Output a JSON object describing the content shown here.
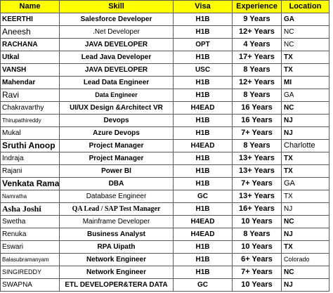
{
  "colors": {
    "header_bg": "#FFFF00",
    "border": "#5a5a5a"
  },
  "headers": {
    "name": "Name",
    "skill": "Skill",
    "visa": "Visa",
    "experience": "Experience",
    "location": "Location"
  },
  "rows": [
    {
      "name": "KEERTHI",
      "skill": "Salesforce Developer",
      "visa": "H1B",
      "experience": "9 Years",
      "location": "GA"
    },
    {
      "name": "Aneesh",
      "skill": ".Net Developer",
      "visa": "H1B",
      "experience": "12+ Years",
      "location": "NC"
    },
    {
      "name": "RACHANA",
      "skill": "JAVA DEVELOPER",
      "visa": "OPT",
      "experience": "4 Years",
      "location": "NC"
    },
    {
      "name": "Utkal",
      "skill": "Lead Java Developer",
      "visa": "H1B",
      "experience": "17+ Years",
      "location": "TX"
    },
    {
      "name": "VANSH",
      "skill": "JAVA DEVELOPER",
      "visa": "USC",
      "experience": "8 Years",
      "location": "TX"
    },
    {
      "name": "Mahendar",
      "skill": "Lead Data Engineer",
      "visa": "H1B",
      "experience": "12+ Years",
      "location": "MI"
    },
    {
      "name": "Ravi",
      "skill": "Data Engineer",
      "visa": "H1B",
      "experience": "8 Years",
      "location": "GA"
    },
    {
      "name": "Chakravarthy",
      "skill": "UI/UX Design &Architect VR",
      "visa": "H4EAD",
      "experience": "16 Years",
      "location": "NC"
    },
    {
      "name": "Thirupathireddy",
      "skill": "Devops",
      "visa": "H1B",
      "experience": "16 Years",
      "location": "NJ"
    },
    {
      "name": "Mukal",
      "skill": "Azure Devops",
      "visa": "H1B",
      "experience": "7+ Years",
      "location": "NJ"
    },
    {
      "name": "Sruthi Anoop",
      "skill": "Project Manager",
      "visa": "H4EAD",
      "experience": "8 Years",
      "location": "Charlotte"
    },
    {
      "name": "Indraja",
      "skill": "Project Manager",
      "visa": "H1B",
      "experience": "13+ Years",
      "location": "TX"
    },
    {
      "name": "Rajani",
      "skill": "Power BI",
      "visa": "H1B",
      "experience": "13+ Years",
      "location": "TX"
    },
    {
      "name": "Venkata Rama",
      "skill": "DBA",
      "visa": "H1B",
      "experience": "7+ Years",
      "location": "GA"
    },
    {
      "name": "Namratha",
      "skill": "Database Engineer",
      "visa": "GC",
      "experience": "13+ Years",
      "location": "TX"
    },
    {
      "name": "Asha Joshi",
      "skill": "QA Lead / SAP Test Manager",
      "visa": "H1B",
      "experience": "16+ Years",
      "location": "NJ"
    },
    {
      "name": "Swetha",
      "skill": "Mainframe Developer",
      "visa": "H4EAD",
      "experience": "10 Years",
      "location": "NC"
    },
    {
      "name": "Renuka",
      "skill": "Business Analyst",
      "visa": "H4EAD",
      "experience": "8 Years",
      "location": "NJ"
    },
    {
      "name": "Eswari",
      "skill": "RPA Uipath",
      "visa": "H1B",
      "experience": "10 Years",
      "location": "TX"
    },
    {
      "name": "Balasubramanyam",
      "skill": "Network Engineer",
      "visa": "H1B",
      "experience": "6+ Years",
      "location": "Colorado"
    },
    {
      "name": "SINGIREDDY",
      "skill": "Network Engineer",
      "visa": "H1B",
      "experience": "7+ Years",
      "location": "NC"
    },
    {
      "name": "SWAPNA",
      "skill": "ETL DEVELOPER&TERA DATA",
      "visa": "GC",
      "experience": "10 Years",
      "location": "NJ"
    }
  ]
}
